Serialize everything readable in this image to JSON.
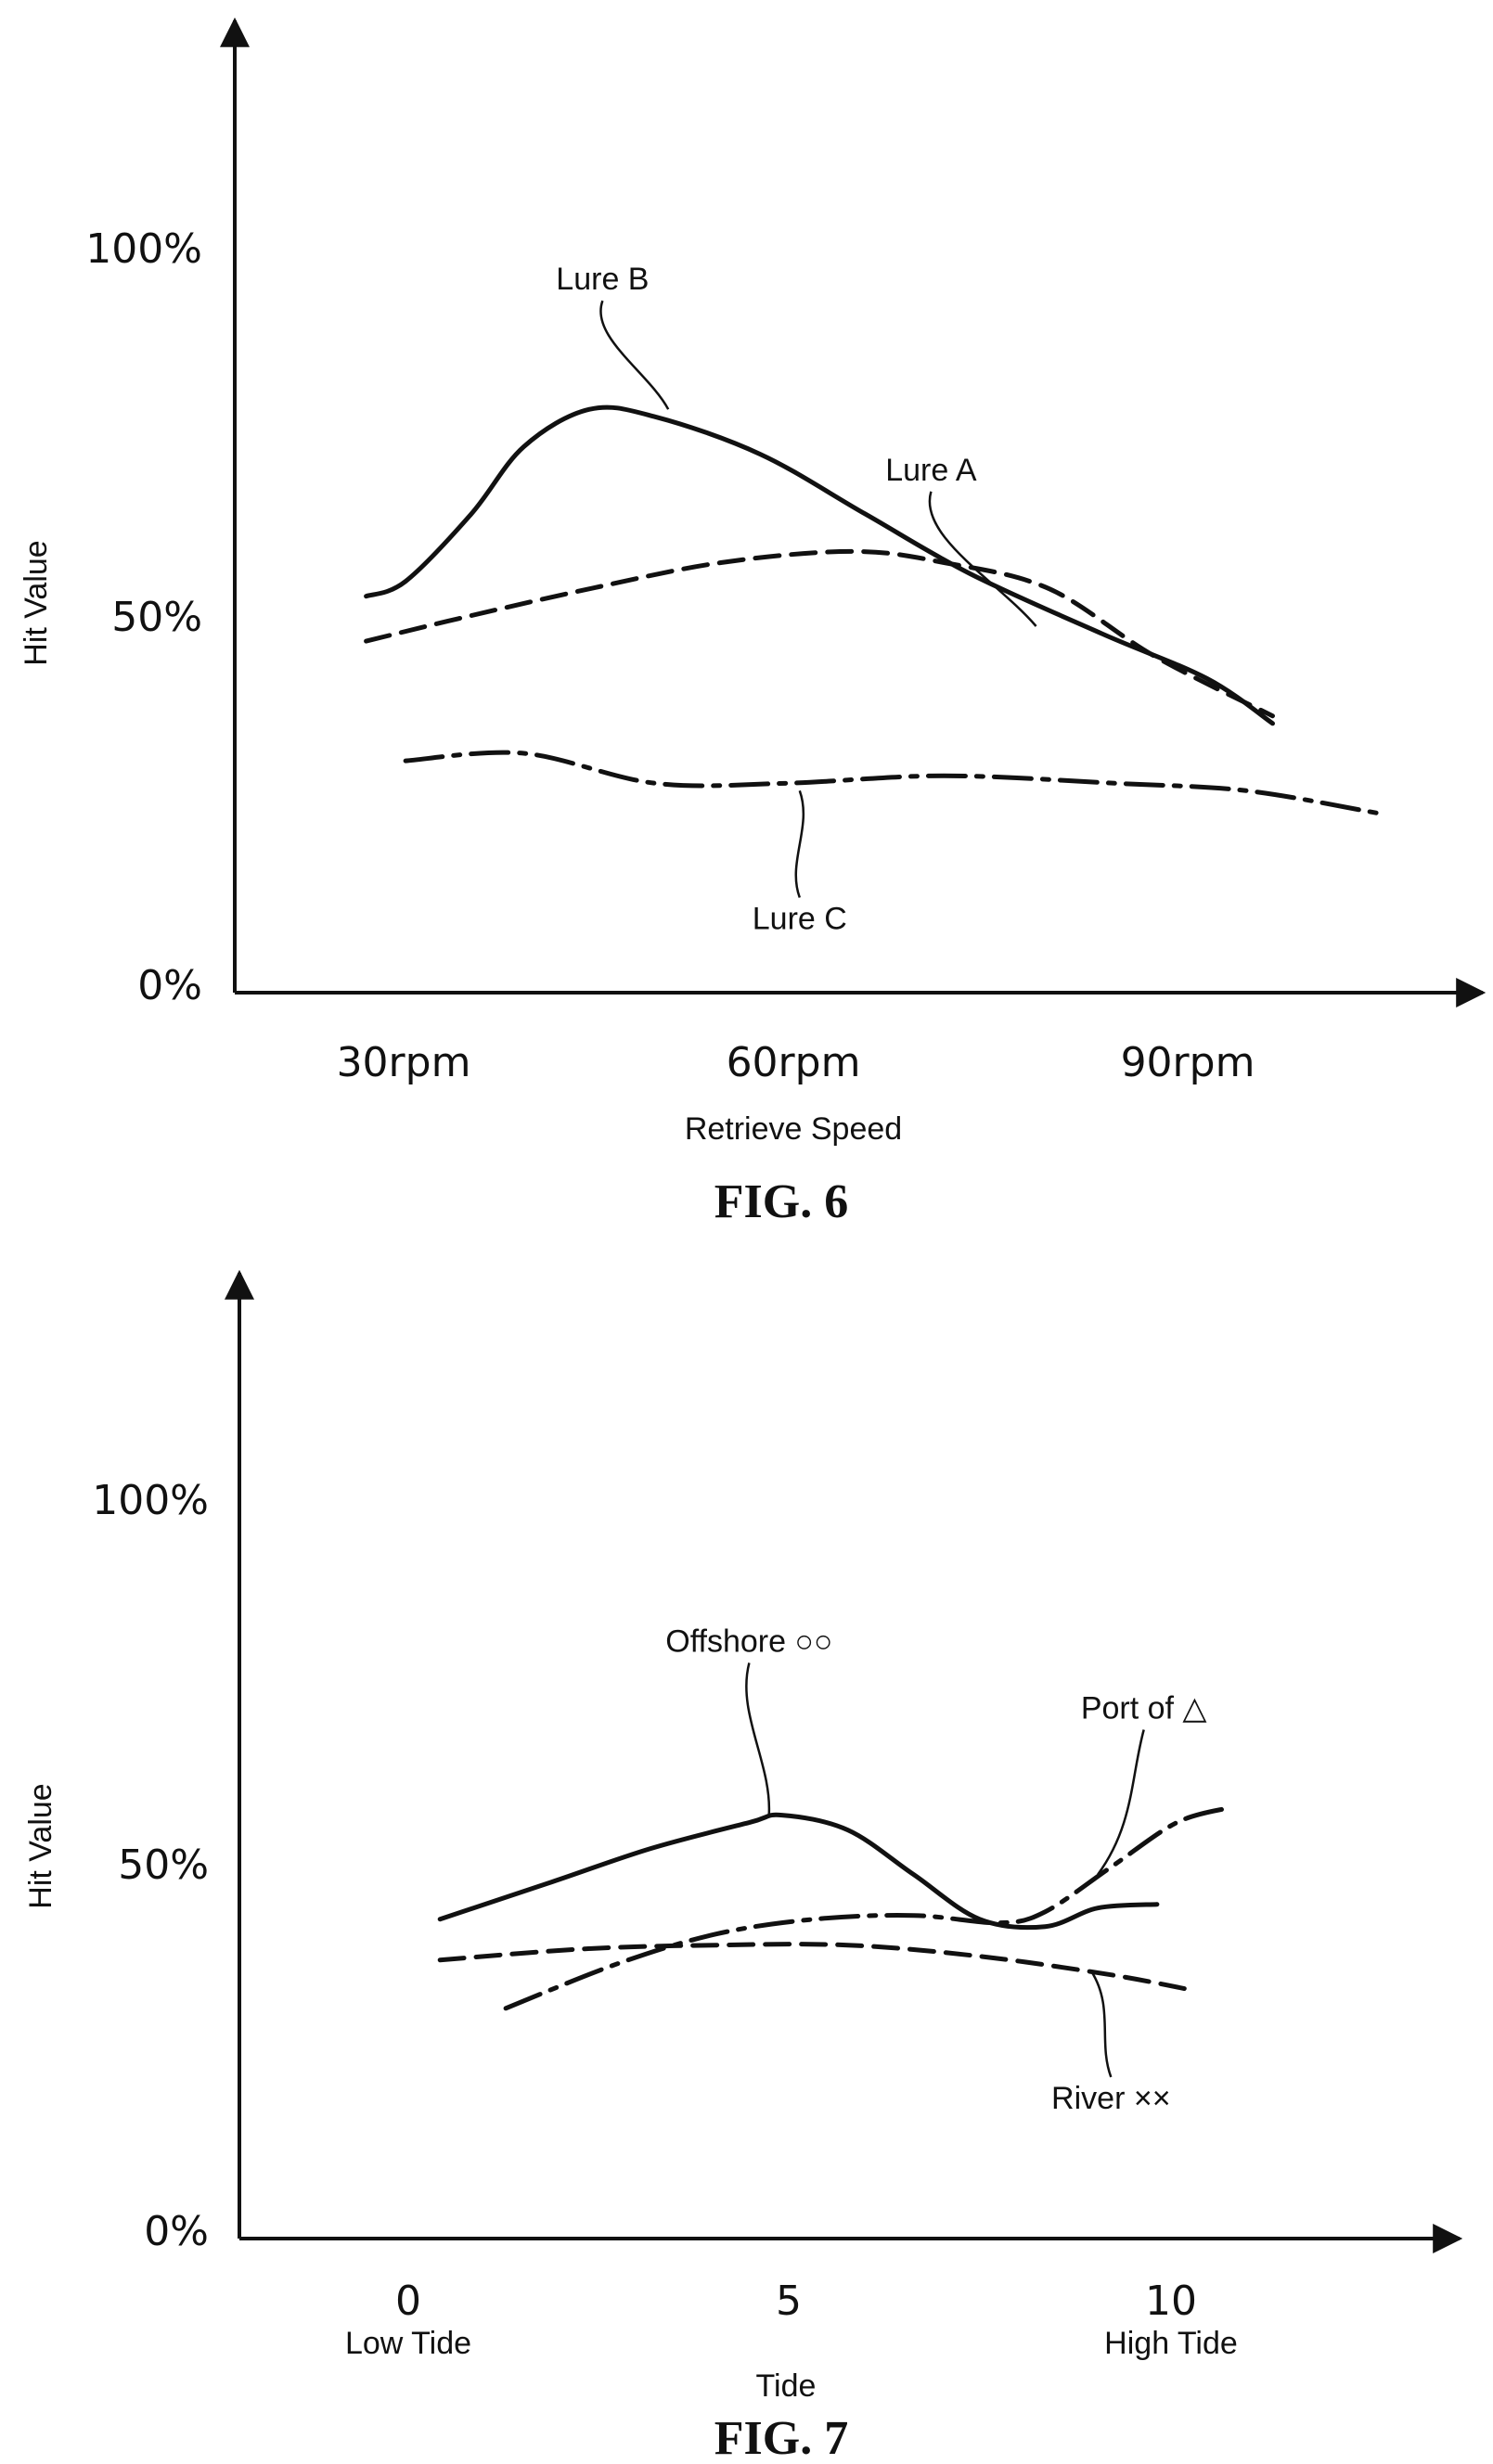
{
  "chart_data": [
    {
      "type": "line",
      "caption": "FIG. 6",
      "xlabel": "Retrieve Speed",
      "ylabel": "Hit Value",
      "x_ticks": [
        {
          "x": 30,
          "label": "30rpm"
        },
        {
          "x": 60,
          "label": "60rpm"
        },
        {
          "x": 90,
          "label": "90rpm"
        }
      ],
      "y_ticks": [
        {
          "y": 0,
          "label": "0%"
        },
        {
          "y": 50,
          "label": "50%"
        },
        {
          "y": 100,
          "label": "100%"
        }
      ],
      "ylim": [
        0,
        130
      ],
      "xlim": [
        18,
        113
      ],
      "grid": false,
      "series": [
        {
          "name": "Lure A",
          "style": "dashed",
          "points": [
            [
              28,
              47
            ],
            [
              35,
              50
            ],
            [
              45,
              54
            ],
            [
              55,
              57.5
            ],
            [
              65,
              59
            ],
            [
              72,
              57.5
            ],
            [
              80,
              54
            ],
            [
              88,
              45
            ],
            [
              97,
              37
            ]
          ],
          "label_pos": [
            71,
            68.5
          ],
          "anchor": [
            79,
            49
          ]
        },
        {
          "name": "Lure B",
          "style": "solid",
          "points": [
            [
              28,
              53
            ],
            [
              31,
              55
            ],
            [
              36,
              64
            ],
            [
              40,
              73
            ],
            [
              45,
              78
            ],
            [
              50,
              77
            ],
            [
              58,
              72
            ],
            [
              66,
              64
            ],
            [
              74,
              56
            ],
            [
              84,
              48
            ],
            [
              92,
              42
            ],
            [
              97,
              36
            ]
          ],
          "label_pos": [
            46,
            94
          ],
          "anchor": [
            51,
            78
          ]
        },
        {
          "name": "Lure C",
          "style": "dashdot",
          "points": [
            [
              31,
              31
            ],
            [
              40,
              32
            ],
            [
              50,
              28
            ],
            [
              60,
              28
            ],
            [
              72,
              29
            ],
            [
              85,
              28
            ],
            [
              95,
              27
            ],
            [
              105,
              24
            ]
          ],
          "label_pos": [
            61,
            8.5
          ],
          "anchor": [
            61,
            27
          ]
        }
      ]
    },
    {
      "type": "line",
      "caption": "FIG. 7",
      "xlabel": "Tide",
      "ylabel": "Hit Value",
      "x_ticks": [
        {
          "x": 0,
          "label": "0",
          "sublabel": "Low Tide"
        },
        {
          "x": 5,
          "label": "5",
          "sublabel": ""
        },
        {
          "x": 10,
          "label": "10",
          "sublabel": "High Tide"
        }
      ],
      "y_ticks": [
        {
          "y": 0,
          "label": "0%"
        },
        {
          "y": 50,
          "label": "50%"
        },
        {
          "y": 100,
          "label": "100%"
        }
      ],
      "ylim": [
        0,
        130
      ],
      "xlim": [
        -4.25,
        14.3
      ],
      "grid": false,
      "series": [
        {
          "name": "Offshore ○○",
          "style": "solid",
          "points": [
            [
              -1.2,
              43
            ],
            [
              0.5,
              48
            ],
            [
              2,
              52.5
            ],
            [
              3.5,
              56
            ],
            [
              4,
              57
            ],
            [
              5,
              55
            ],
            [
              6,
              49
            ],
            [
              7,
              43
            ],
            [
              8,
              42
            ],
            [
              8.8,
              44.5
            ],
            [
              9.7,
              45
            ]
          ],
          "label_pos": [
            3.5,
            79
          ],
          "anchor": [
            3.8,
            57
          ]
        },
        {
          "name": "Port of △",
          "style": "dashdot",
          "points": [
            [
              -0.2,
              31
            ],
            [
              1.5,
              37
            ],
            [
              3,
              41
            ],
            [
              4.5,
              43
            ],
            [
              6,
              43.5
            ],
            [
              7.3,
              42.5
            ],
            [
              8,
              44
            ],
            [
              9,
              50
            ],
            [
              10,
              56
            ],
            [
              10.8,
              58
            ]
          ],
          "label_pos": [
            9.5,
            70
          ],
          "anchor": [
            8.8,
            49
          ]
        },
        {
          "name": "River ××",
          "style": "dashed",
          "points": [
            [
              -1.2,
              37.5
            ],
            [
              1,
              39
            ],
            [
              3,
              39.5
            ],
            [
              5,
              39.5
            ],
            [
              7,
              38
            ],
            [
              9,
              35.5
            ],
            [
              10.2,
              33.5
            ]
          ],
          "label_pos": [
            9,
            17.5
          ],
          "anchor": [
            8.7,
            36
          ]
        }
      ]
    }
  ]
}
